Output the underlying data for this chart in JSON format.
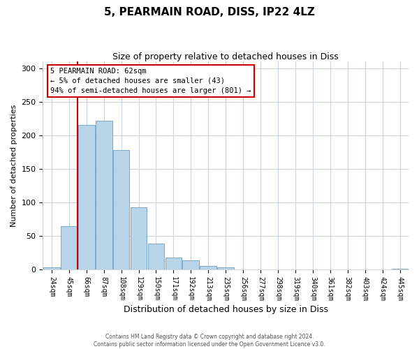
{
  "title": "5, PEARMAIN ROAD, DISS, IP22 4LZ",
  "subtitle": "Size of property relative to detached houses in Diss",
  "xlabel": "Distribution of detached houses by size in Diss",
  "ylabel": "Number of detached properties",
  "bar_labels": [
    "24sqm",
    "45sqm",
    "66sqm",
    "87sqm",
    "108sqm",
    "129sqm",
    "150sqm",
    "171sqm",
    "192sqm",
    "213sqm",
    "235sqm",
    "256sqm",
    "277sqm",
    "298sqm",
    "319sqm",
    "340sqm",
    "361sqm",
    "382sqm",
    "403sqm",
    "424sqm",
    "445sqm"
  ],
  "bar_values": [
    4,
    65,
    215,
    222,
    178,
    93,
    39,
    18,
    14,
    6,
    4,
    1,
    0,
    0,
    0,
    0,
    0,
    0,
    0,
    0,
    2
  ],
  "bar_color": "#b8d4e8",
  "bar_edge_color": "#7aaac8",
  "vline_color": "#cc0000",
  "annotation_title": "5 PEARMAIN ROAD: 62sqm",
  "annotation_line1": "← 5% of detached houses are smaller (43)",
  "annotation_line2": "94% of semi-detached houses are larger (801) →",
  "annotation_box_color": "#cc0000",
  "annotation_text_color": "#000000",
  "ylim": [
    0,
    310
  ],
  "yticks": [
    0,
    50,
    100,
    150,
    200,
    250,
    300
  ],
  "footer_line1": "Contains HM Land Registry data © Crown copyright and database right 2024.",
  "footer_line2": "Contains public sector information licensed under the Open Government Licence v3.0.",
  "background_color": "#ffffff",
  "grid_color": "#cdd5e0"
}
